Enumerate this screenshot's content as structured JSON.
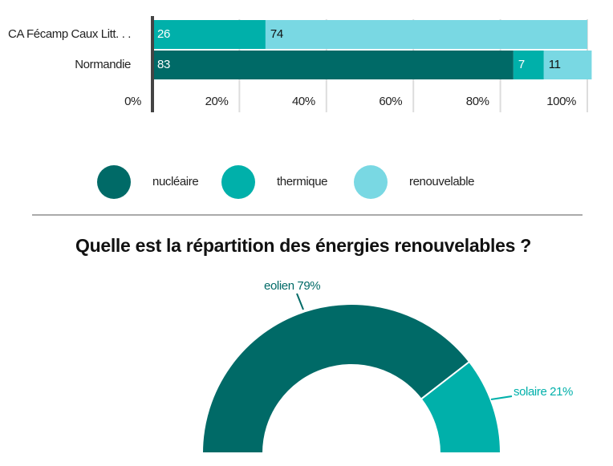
{
  "chart_data": [
    {
      "type": "stacked-bar-horizontal",
      "categories": [
        "CA Fécamp Caux Litt. . .",
        "Normandie"
      ],
      "series": [
        {
          "name": "nucléaire",
          "color": "#006a67",
          "values": [
            0,
            83
          ]
        },
        {
          "name": "thermique",
          "color": "#00b0aa",
          "values": [
            26,
            7
          ]
        },
        {
          "name": "renouvelable",
          "color": "#79d8e3",
          "values": [
            74,
            11
          ]
        }
      ],
      "xlim": [
        0,
        100
      ],
      "xticks": [
        {
          "value": 0,
          "label": "0%"
        },
        {
          "value": 20,
          "label": "20%"
        },
        {
          "value": 40,
          "label": "40%"
        },
        {
          "value": 60,
          "label": "60%"
        },
        {
          "value": 80,
          "label": "80%"
        },
        {
          "value": 100,
          "label": "100%"
        }
      ],
      "grid": true,
      "legend": "bottom"
    },
    {
      "type": "semi-donut",
      "title": "Quelle est la répartition des énergies renouvelables ?",
      "categories": [
        "eolien",
        "solaire"
      ],
      "values": [
        79,
        21
      ],
      "value_labels": [
        "79%",
        "21%"
      ],
      "colors": [
        "#006a67",
        "#00b0aa"
      ]
    }
  ]
}
